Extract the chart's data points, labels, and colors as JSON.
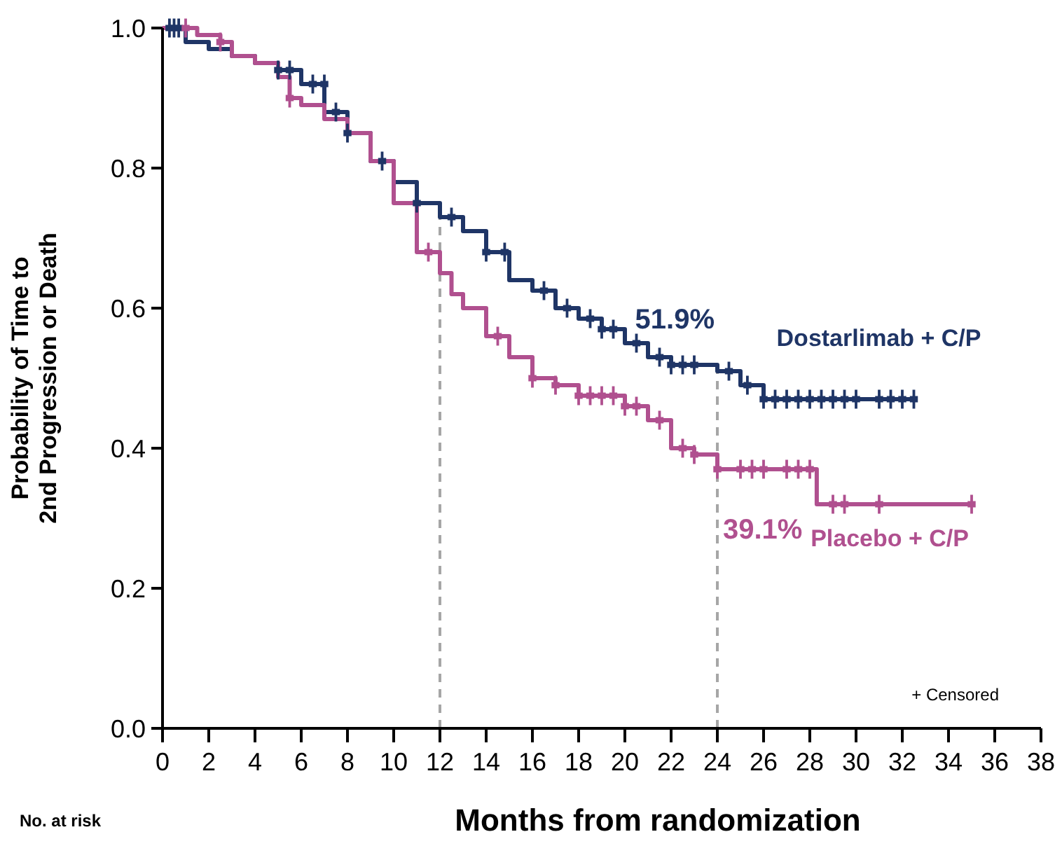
{
  "chart_data": {
    "type": "step",
    "xlabel": "Months from randomization",
    "ylabel": "Probability of Time to\n2nd Progression or Death",
    "xlim": [
      0,
      38
    ],
    "xticks": [
      0,
      2,
      4,
      6,
      8,
      10,
      12,
      14,
      16,
      18,
      20,
      22,
      24,
      26,
      28,
      30,
      32,
      34,
      36,
      38
    ],
    "ylim": [
      0,
      1
    ],
    "yticks": [
      {
        "value": 0,
        "label": "0.0"
      },
      {
        "value": 0.2,
        "label": "0.2"
      },
      {
        "value": 0.4,
        "label": "0.4"
      },
      {
        "value": 0.6,
        "label": "0.6"
      },
      {
        "value": 0.8,
        "label": "0.8"
      },
      {
        "value": 1,
        "label": "1.0"
      }
    ],
    "grid": false,
    "legend": "right",
    "line_style": "solid",
    "series": [
      {
        "name": "Dostarlimab + C/P",
        "color": "#1f3566",
        "x": [
          0,
          1,
          2,
          3,
          4,
          5,
          6,
          7,
          8,
          9,
          10,
          11,
          12,
          13,
          14,
          15,
          16,
          17,
          18,
          19,
          20,
          21,
          22,
          24,
          25,
          26,
          32.5
        ],
        "values": [
          1,
          0.98,
          0.97,
          0.96,
          0.95,
          0.94,
          0.92,
          0.88,
          0.85,
          0.81,
          0.78,
          0.75,
          0.73,
          0.71,
          0.68,
          0.64,
          0.625,
          0.6,
          0.585,
          0.57,
          0.55,
          0.53,
          0.519,
          0.51,
          0.49,
          0.47,
          0.47
        ]
      },
      {
        "name": "Placebo + C/P",
        "color": "#b0508f",
        "x": [
          0,
          1.5,
          2.5,
          3,
          4,
          5,
          5.5,
          6,
          7,
          8,
          9,
          10,
          11,
          12,
          12.5,
          13,
          14,
          15,
          16,
          17,
          18,
          20,
          21,
          22,
          23,
          24,
          28.3,
          35
        ],
        "values": [
          1,
          0.99,
          0.98,
          0.96,
          0.95,
          0.93,
          0.9,
          0.89,
          0.87,
          0.85,
          0.81,
          0.75,
          0.68,
          0.65,
          0.62,
          0.6,
          0.56,
          0.53,
          0.5,
          0.49,
          0.475,
          0.46,
          0.44,
          0.4,
          0.391,
          0.37,
          0.32,
          0.32
        ]
      },
      {
        "type": "scatter",
        "marker": "cross",
        "color": "#1f3566",
        "x": [
          0.3,
          0.5,
          0.7,
          5,
          5.5,
          6.5,
          7,
          7.5,
          8,
          9.5,
          11,
          12.5,
          14,
          14.8,
          16.5,
          17.5,
          18.5,
          19,
          19.5,
          20.5,
          21.5,
          22,
          22.5,
          23,
          24.5,
          25.3,
          26,
          26.5,
          27,
          27.5,
          28,
          28.5,
          29,
          29.5,
          30,
          31,
          31.5,
          32,
          32.5
        ],
        "values": [
          1,
          1,
          1,
          0.94,
          0.94,
          0.92,
          0.92,
          0.88,
          0.85,
          0.81,
          0.75,
          0.73,
          0.68,
          0.68,
          0.625,
          0.6,
          0.585,
          0.57,
          0.57,
          0.55,
          0.53,
          0.519,
          0.519,
          0.519,
          0.51,
          0.49,
          0.47,
          0.47,
          0.47,
          0.47,
          0.47,
          0.47,
          0.47,
          0.47,
          0.47,
          0.47,
          0.47,
          0.47,
          0.47
        ]
      },
      {
        "type": "scatter",
        "marker": "cross",
        "color": "#b0508f",
        "x": [
          1,
          2.5,
          5.5,
          11.5,
          14.5,
          16,
          17,
          18,
          18.5,
          19,
          19.5,
          20,
          20.5,
          21.5,
          22.5,
          23,
          24,
          25,
          25.5,
          26,
          27,
          27.5,
          28,
          29,
          29.5,
          31,
          35
        ],
        "values": [
          1,
          0.98,
          0.9,
          0.68,
          0.56,
          0.5,
          0.49,
          0.475,
          0.475,
          0.475,
          0.475,
          0.46,
          0.46,
          0.44,
          0.4,
          0.391,
          0.37,
          0.37,
          0.37,
          0.37,
          0.37,
          0.37,
          0.37,
          0.32,
          0.32,
          0.32,
          0.32
        ]
      }
    ],
    "ref_lines": [
      {
        "axis": "x",
        "value": 12,
        "color": "#a6a6a6",
        "line_style": "dashed"
      },
      {
        "axis": "x",
        "value": 24,
        "color": "#a6a6a6",
        "line_style": "dashed"
      }
    ],
    "annotations": [
      {
        "text": "51.9%",
        "x": 24,
        "y": 0.519
      },
      {
        "text": "39.1%",
        "x": 24,
        "y": 0.391
      },
      "+ Censored",
      "No. at risk"
    ]
  }
}
